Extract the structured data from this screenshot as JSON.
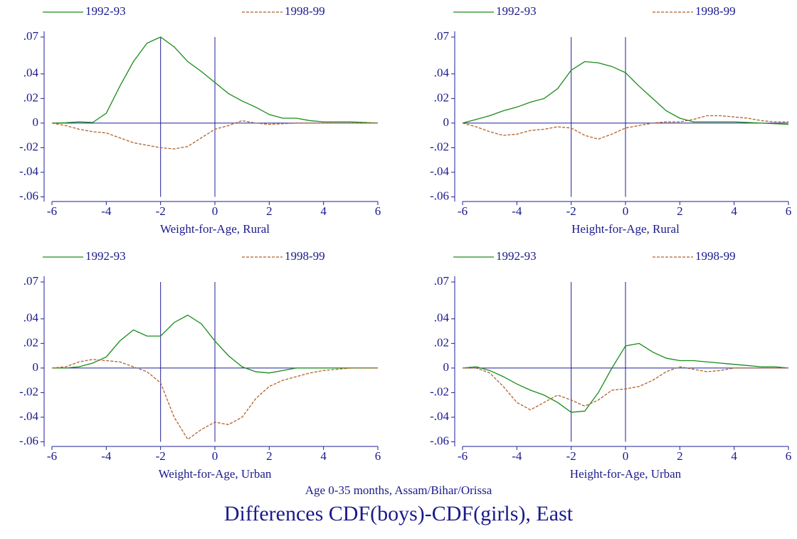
{
  "title": "Differences CDF(boys)-CDF(girls), East",
  "subtitle": "Age 0-35 months, Assam/Bihar/Orissa",
  "chart_data": [
    {
      "type": "line",
      "xlabel": "Weight-for-Age, Rural",
      "x": [
        -6,
        -5.5,
        -5,
        -4.5,
        -4,
        -3.5,
        -3,
        -2.5,
        -2,
        -1.5,
        -1,
        -0.5,
        0,
        0.5,
        1,
        1.5,
        2,
        2.5,
        3,
        3.5,
        4,
        4.5,
        5,
        5.5,
        6
      ],
      "series": [
        {
          "name": "1992-93",
          "color": "#1a8c1a",
          "dash": false,
          "values": [
            0,
            0.0003,
            0.001,
            0.0005,
            0.008,
            0.03,
            0.05,
            0.065,
            0.07,
            0.062,
            0.05,
            0.042,
            0.033,
            0.024,
            0.018,
            0.013,
            0.007,
            0.004,
            0.004,
            0.002,
            0.001,
            0.001,
            0.001,
            0.0005,
            0
          ]
        },
        {
          "name": "1998-99",
          "color": "#b0622a",
          "dash": true,
          "values": [
            0,
            -0.002,
            -0.005,
            -0.007,
            -0.008,
            -0.012,
            -0.016,
            -0.018,
            -0.02,
            -0.021,
            -0.019,
            -0.012,
            -0.005,
            -0.002,
            0.002,
            0,
            -0.001,
            -0.0005,
            0,
            0,
            0,
            0,
            0,
            0,
            0
          ]
        }
      ],
      "xlim": [
        -6,
        6
      ],
      "ylim": [
        -0.06,
        0.07
      ],
      "xticks": [
        -6,
        -4,
        -2,
        0,
        2,
        4,
        6
      ],
      "yticks": [
        {
          "value": 0.07,
          "label": ".07"
        },
        {
          "value": 0.04,
          "label": ".04"
        },
        {
          "value": 0.02,
          "label": ".02"
        },
        0,
        {
          "value": -0.02,
          "label": "-.02"
        },
        {
          "value": -0.04,
          "label": "-.04"
        },
        {
          "value": -0.06,
          "label": "-.06"
        }
      ],
      "vlines": [
        -2,
        0
      ],
      "hline": 0
    },
    {
      "type": "line",
      "xlabel": "Height-for-Age, Rural",
      "x": [
        -6,
        -5.5,
        -5,
        -4.5,
        -4,
        -3.5,
        -3,
        -2.5,
        -2,
        -1.5,
        -1,
        -0.5,
        0,
        0.5,
        1,
        1.5,
        2,
        2.5,
        3,
        3.5,
        4,
        4.5,
        5,
        5.5,
        6
      ],
      "series": [
        {
          "name": "1992-93",
          "color": "#1a8c1a",
          "dash": false,
          "values": [
            0,
            0.003,
            0.006,
            0.01,
            0.013,
            0.017,
            0.02,
            0.028,
            0.043,
            0.05,
            0.049,
            0.046,
            0.041,
            0.03,
            0.02,
            0.01,
            0.004,
            0.001,
            0.001,
            0.001,
            0.001,
            0.0005,
            0,
            -0.0005,
            -0.001
          ]
        },
        {
          "name": "1998-99",
          "color": "#b0622a",
          "dash": true,
          "values": [
            0,
            -0.003,
            -0.007,
            -0.01,
            -0.009,
            -0.006,
            -0.005,
            -0.003,
            -0.004,
            -0.01,
            -0.013,
            -0.009,
            -0.004,
            -0.002,
            0,
            0.001,
            0.001,
            0.003,
            0.006,
            0.006,
            0.005,
            0.004,
            0.002,
            0.001,
            0.001
          ]
        }
      ],
      "xlim": [
        -6,
        6
      ],
      "ylim": [
        -0.06,
        0.07
      ],
      "xticks": [
        -6,
        -4,
        -2,
        0,
        2,
        4,
        6
      ],
      "yticks": [
        {
          "value": 0.07,
          "label": ".07"
        },
        {
          "value": 0.04,
          "label": ".04"
        },
        {
          "value": 0.02,
          "label": ".02"
        },
        0,
        {
          "value": -0.02,
          "label": "-.02"
        },
        {
          "value": -0.04,
          "label": "-.04"
        },
        {
          "value": -0.06,
          "label": "-.06"
        }
      ],
      "vlines": [
        -2,
        0
      ],
      "hline": 0
    },
    {
      "type": "line",
      "xlabel": "Weight-for-Age, Urban",
      "x": [
        -6,
        -5.5,
        -5,
        -4.5,
        -4,
        -3.5,
        -3,
        -2.5,
        -2,
        -1.5,
        -1,
        -0.5,
        0,
        0.5,
        1,
        1.5,
        2,
        2.5,
        3,
        3.5,
        4,
        4.5,
        5,
        5.5,
        6
      ],
      "series": [
        {
          "name": "1992-93",
          "color": "#1a8c1a",
          "dash": false,
          "values": [
            0,
            0,
            0.001,
            0.004,
            0.009,
            0.022,
            0.031,
            0.026,
            0.026,
            0.037,
            0.043,
            0.036,
            0.022,
            0.01,
            0.001,
            -0.003,
            -0.004,
            -0.002,
            0,
            0,
            0,
            0,
            0,
            0,
            0
          ]
        },
        {
          "name": "1998-99",
          "color": "#b0622a",
          "dash": true,
          "values": [
            0,
            0.001,
            0.005,
            0.007,
            0.006,
            0.005,
            0.001,
            -0.003,
            -0.012,
            -0.04,
            -0.058,
            -0.05,
            -0.044,
            -0.046,
            -0.04,
            -0.025,
            -0.015,
            -0.01,
            -0.007,
            -0.004,
            -0.002,
            -0.001,
            0,
            0,
            0
          ]
        }
      ],
      "xlim": [
        -6,
        6
      ],
      "ylim": [
        -0.06,
        0.07
      ],
      "xticks": [
        -6,
        -4,
        -2,
        0,
        2,
        4,
        6
      ],
      "yticks": [
        {
          "value": 0.07,
          "label": ".07"
        },
        {
          "value": 0.04,
          "label": ".04"
        },
        {
          "value": 0.02,
          "label": ".02"
        },
        0,
        {
          "value": -0.02,
          "label": "-.02"
        },
        {
          "value": -0.04,
          "label": "-.04"
        },
        {
          "value": -0.06,
          "label": "-.06"
        }
      ],
      "vlines": [
        -2,
        0
      ],
      "hline": 0
    },
    {
      "type": "line",
      "xlabel": "Height-for-Age, Urban",
      "x": [
        -6,
        -5.5,
        -5,
        -4.5,
        -4,
        -3.5,
        -3,
        -2.5,
        -2,
        -1.5,
        -1,
        -0.5,
        0,
        0.5,
        1,
        1.5,
        2,
        2.5,
        3,
        3.5,
        4,
        4.5,
        5,
        5.5,
        6
      ],
      "series": [
        {
          "name": "1992-93",
          "color": "#1a8c1a",
          "dash": false,
          "values": [
            0,
            0.001,
            -0.002,
            -0.007,
            -0.013,
            -0.018,
            -0.022,
            -0.028,
            -0.036,
            -0.035,
            -0.02,
            0,
            0.018,
            0.02,
            0.013,
            0.008,
            0.006,
            0.006,
            0.005,
            0.004,
            0.003,
            0.002,
            0.001,
            0.001,
            0
          ]
        },
        {
          "name": "1998-99",
          "color": "#b0622a",
          "dash": true,
          "values": [
            0,
            0,
            -0.004,
            -0.015,
            -0.028,
            -0.034,
            -0.028,
            -0.022,
            -0.026,
            -0.031,
            -0.026,
            -0.018,
            -0.017,
            -0.015,
            -0.01,
            -0.003,
            0.001,
            -0.001,
            -0.003,
            -0.002,
            0,
            0,
            0,
            0,
            0
          ]
        }
      ],
      "xlim": [
        -6,
        6
      ],
      "ylim": [
        -0.06,
        0.07
      ],
      "xticks": [
        -6,
        -4,
        -2,
        0,
        2,
        4,
        6
      ],
      "yticks": [
        {
          "value": 0.07,
          "label": ".07"
        },
        {
          "value": 0.04,
          "label": ".04"
        },
        {
          "value": 0.02,
          "label": ".02"
        },
        0,
        {
          "value": -0.02,
          "label": "-.02"
        },
        {
          "value": -0.04,
          "label": "-.04"
        },
        {
          "value": -0.06,
          "label": "-.06"
        }
      ],
      "vlines": [
        -2,
        0
      ],
      "hline": 0
    }
  ]
}
